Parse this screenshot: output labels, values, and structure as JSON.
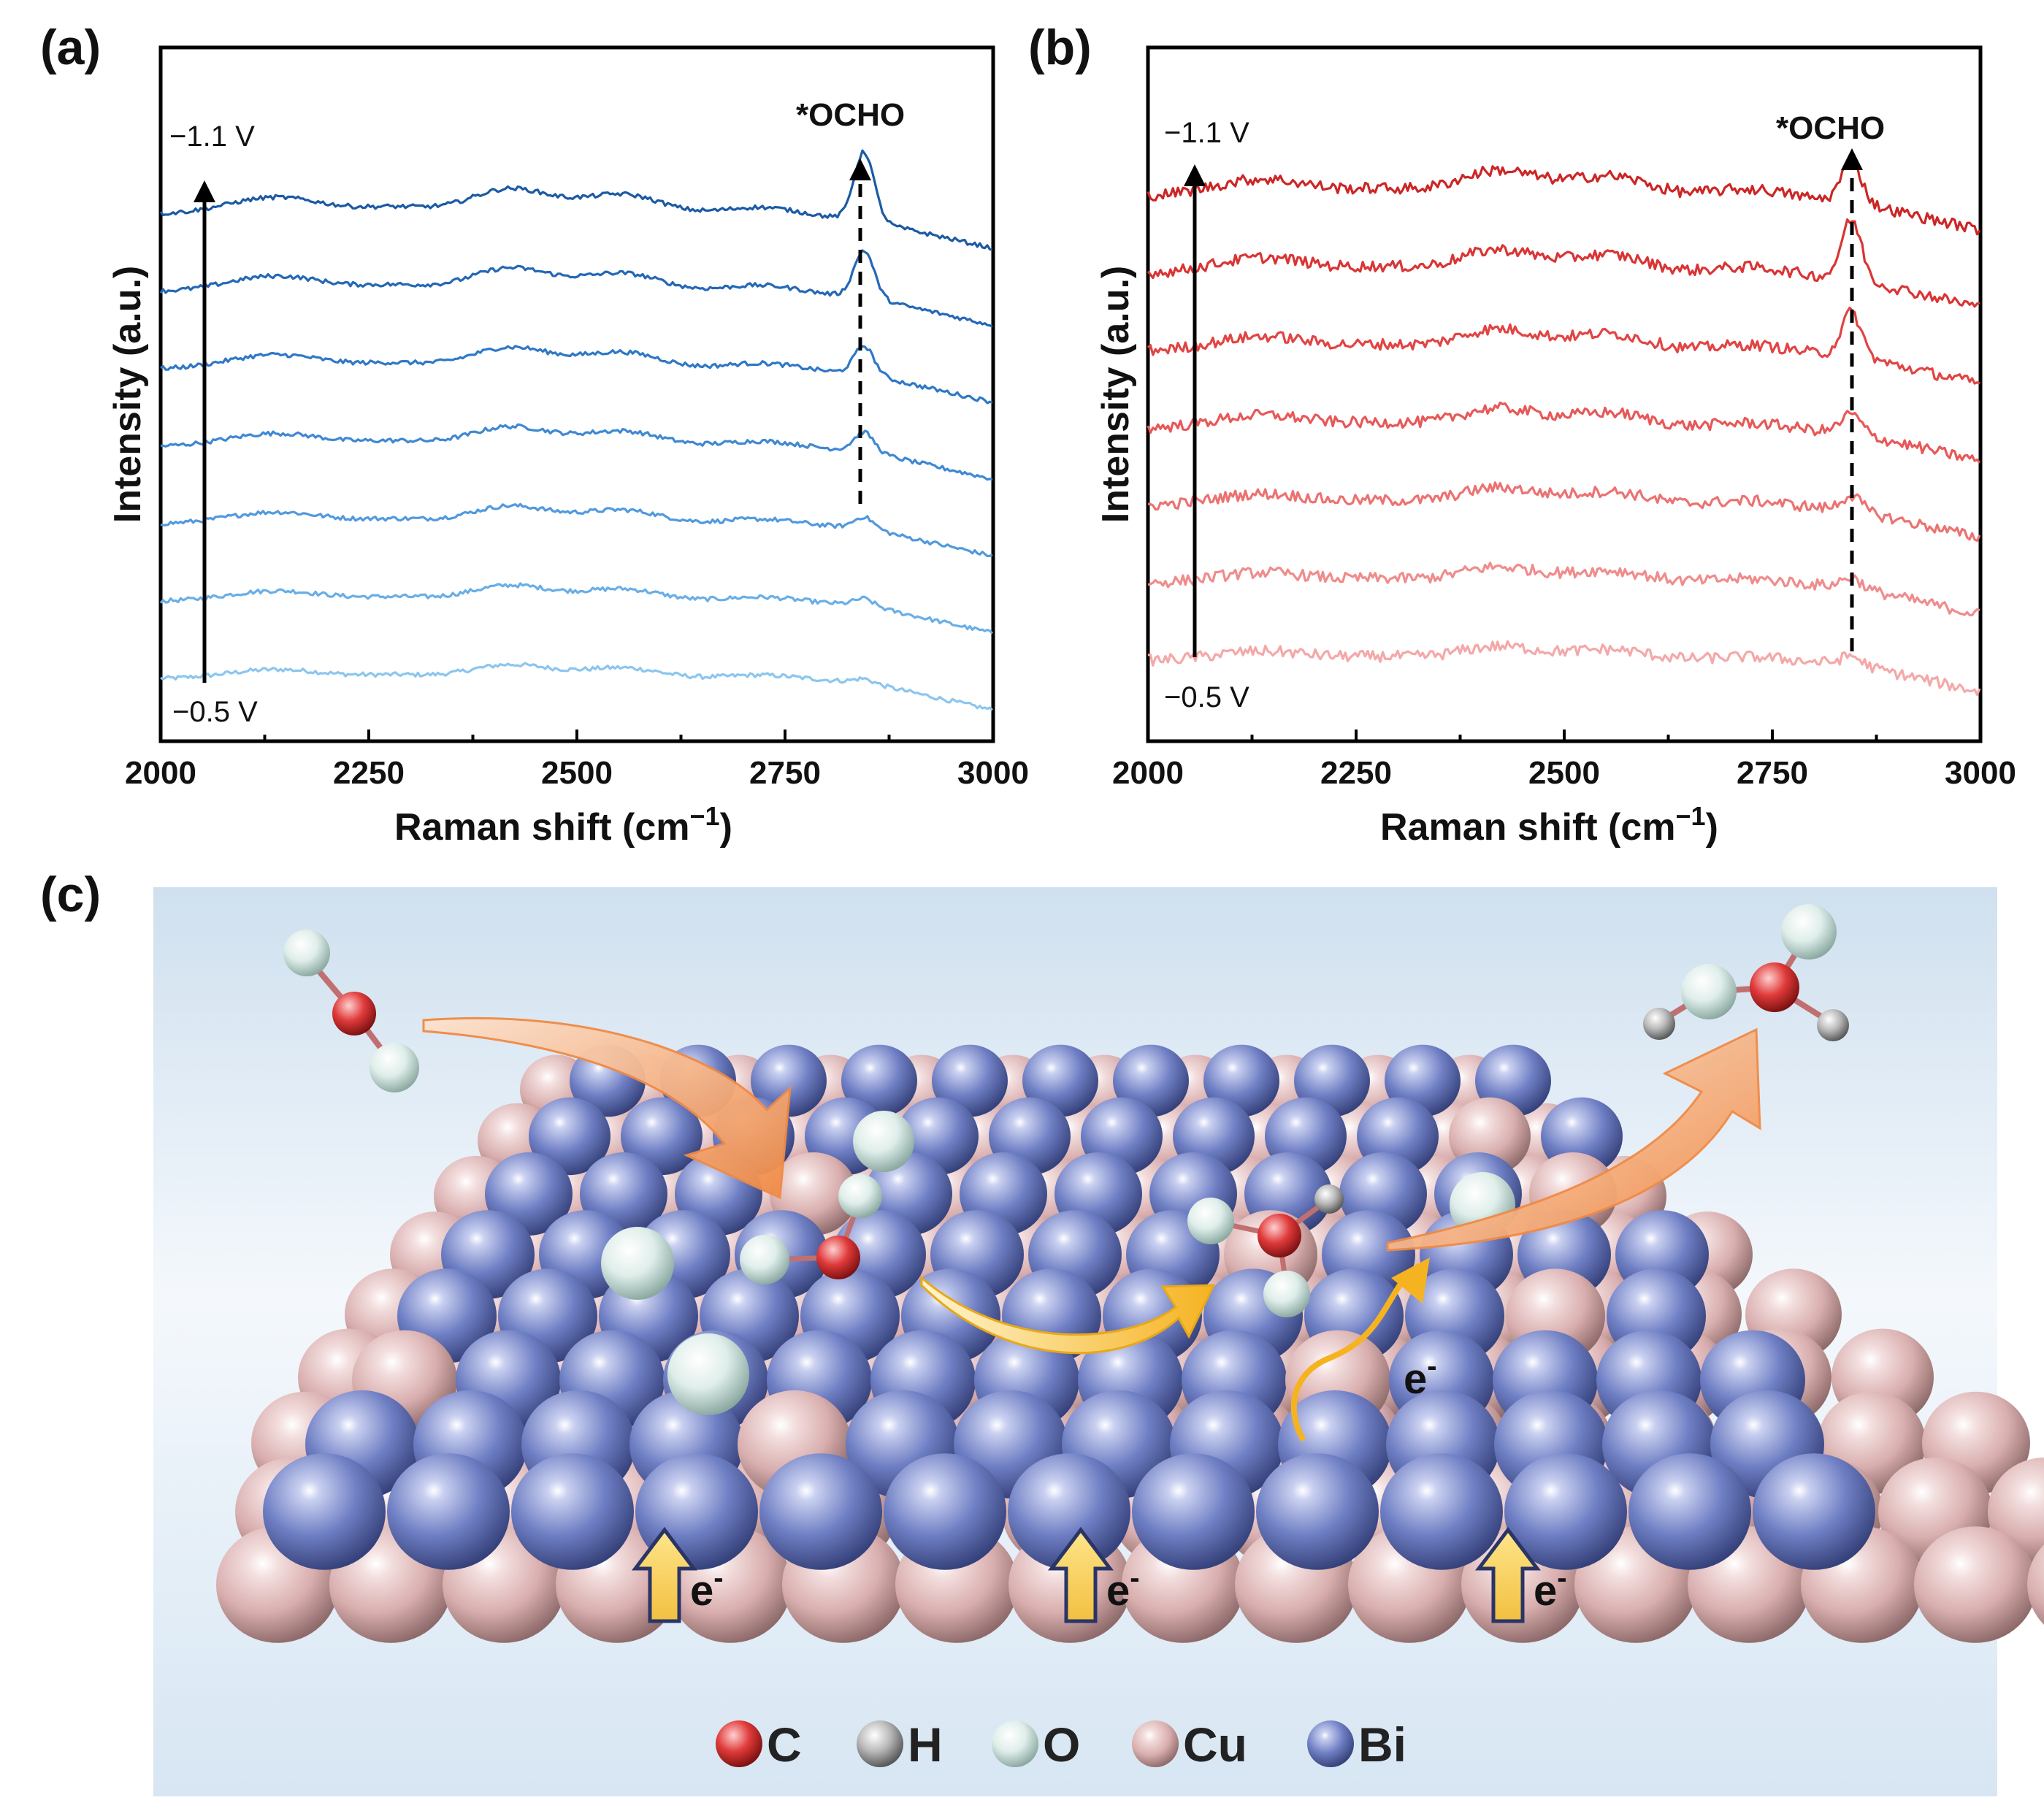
{
  "panels": {
    "a": "(a)",
    "b": "(b)",
    "c": "(c)"
  },
  "chart_data": [
    {
      "id": "a",
      "type": "line",
      "title": "",
      "xlabel": "Raman shift (cm",
      "xlabel_sup": "−1",
      "xlabel_close": ")",
      "ylabel": "Intensity (a.u.)",
      "xlim": [
        2000,
        3000
      ],
      "xticks": [
        "2000",
        "2250",
        "2500",
        "2750",
        "3000"
      ],
      "arrow_top_label": "−1.1 V",
      "arrow_bottom_label": "−0.5 V",
      "peak_label": "*OCHO",
      "peak_x": 2845,
      "colors": [
        "#8cc6ee",
        "#6aaee6",
        "#5199de",
        "#3f88d2",
        "#2f78c6",
        "#2468b6",
        "#1c5aa4"
      ],
      "series_potentials": [
        "−0.5 V",
        "",
        "",
        "",
        "",
        "",
        "−1.1 V"
      ],
      "series_offsets": [
        0,
        1,
        2,
        3,
        4,
        5,
        6
      ],
      "series_peak_strength": [
        0.1,
        0.2,
        0.35,
        0.6,
        0.9,
        1.5,
        2.2
      ],
      "series_noise": 0.14
    },
    {
      "id": "b",
      "type": "line",
      "title": "",
      "xlabel": "Raman shift (cm",
      "xlabel_sup": "−1",
      "xlabel_close": ")",
      "ylabel": "Intensity (a.u.)",
      "xlim": [
        2000,
        3000
      ],
      "xticks": [
        "2000",
        "2250",
        "2500",
        "2750",
        "3000"
      ],
      "arrow_top_label": "−1.1 V",
      "arrow_bottom_label": "−0.5 V",
      "peak_label": "*OCHO",
      "peak_x": 2845,
      "colors": [
        "#f4a8a8",
        "#f08c8c",
        "#ec7272",
        "#e85858",
        "#e24444",
        "#da3434",
        "#cc2626"
      ],
      "series_potentials": [
        "−0.5 V",
        "",
        "",
        "",
        "",
        "",
        "−1.1 V"
      ],
      "series_offsets": [
        0,
        1,
        2,
        3,
        4,
        5,
        6
      ],
      "series_peak_strength": [
        0.25,
        0.3,
        0.45,
        0.6,
        1.4,
        1.9,
        1.3
      ],
      "series_noise": 0.36
    }
  ],
  "schematic": {
    "electron_label": "e",
    "electron_sup": "-",
    "legend": [
      {
        "symbol": "C",
        "color": "#e03a3a"
      },
      {
        "symbol": "H",
        "color": "#b8b8b8"
      },
      {
        "symbol": "O",
        "color": "#dfeeea"
      },
      {
        "symbol": "Cu",
        "color": "#e8c2c2"
      },
      {
        "symbol": "Bi",
        "color": "#6f7fc4"
      }
    ]
  }
}
